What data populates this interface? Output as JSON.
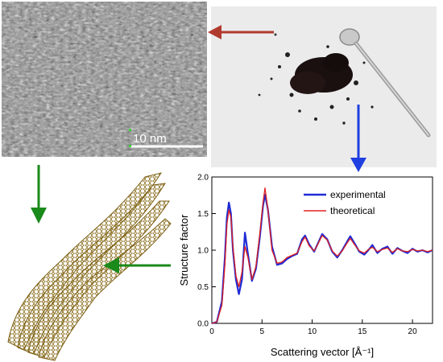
{
  "tem_panel": {
    "scale_bar_label": "10 nm"
  },
  "arrow_colors": {
    "red": "#b03a2e",
    "blue": "#1f3fe0",
    "green": "#1a8a1a"
  },
  "chart_data": {
    "type": "line",
    "xlabel": "Scattering vector [Å⁻¹]",
    "ylabel": "Structure factor",
    "xlim": [
      0,
      22
    ],
    "ylim": [
      0,
      2.0
    ],
    "xticks": [
      "0",
      "5",
      "10",
      "15",
      "20"
    ],
    "yticks": [
      "0.0",
      "0.5",
      "1.0",
      "1.5",
      "2.0"
    ],
    "grid": false,
    "legend_position": "top-right",
    "series": [
      {
        "name": "experimental",
        "color": "#1f2bd6",
        "x": [
          0,
          0.5,
          1.0,
          1.3,
          1.5,
          1.7,
          1.9,
          2.1,
          2.4,
          2.7,
          3.0,
          3.3,
          3.6,
          4.0,
          4.4,
          4.8,
          5.1,
          5.3,
          5.6,
          6.0,
          6.5,
          7.0,
          7.5,
          8.0,
          8.5,
          9.0,
          9.3,
          9.7,
          10.2,
          10.6,
          11.0,
          11.5,
          12.0,
          12.5,
          13.0,
          13.5,
          13.8,
          14.2,
          14.7,
          15.2,
          15.6,
          16.0,
          16.5,
          17.0,
          17.5,
          18.0,
          18.5,
          19.0,
          19.5,
          20.0,
          20.5,
          21.0,
          21.5,
          22.0
        ],
        "y": [
          0.0,
          0.02,
          0.3,
          0.9,
          1.45,
          1.65,
          1.5,
          1.0,
          0.6,
          0.4,
          0.6,
          1.24,
          0.95,
          0.58,
          0.75,
          1.2,
          1.6,
          1.76,
          1.55,
          1.05,
          0.8,
          0.82,
          0.88,
          0.92,
          0.95,
          1.15,
          1.2,
          1.08,
          0.98,
          1.1,
          1.22,
          1.15,
          0.98,
          0.9,
          1.0,
          1.12,
          1.19,
          1.1,
          0.98,
          0.94,
          1.0,
          1.07,
          0.96,
          1.02,
          1.05,
          0.95,
          1.03,
          0.99,
          0.96,
          1.02,
          0.98,
          1.0,
          0.97,
          1.0
        ]
      },
      {
        "name": "theoretical",
        "color": "#e02020",
        "x": [
          0,
          0.5,
          1.0,
          1.3,
          1.5,
          1.7,
          1.9,
          2.1,
          2.4,
          2.7,
          3.0,
          3.3,
          3.6,
          4.0,
          4.4,
          4.8,
          5.1,
          5.3,
          5.6,
          6.0,
          6.5,
          7.0,
          7.5,
          8.0,
          8.5,
          9.0,
          9.3,
          9.7,
          10.2,
          10.6,
          11.0,
          11.5,
          12.0,
          12.5,
          13.0,
          13.5,
          13.8,
          14.2,
          14.7,
          15.2,
          15.6,
          16.0,
          16.5,
          17.0,
          17.5,
          18.0,
          18.5,
          19.0,
          19.5,
          20.0,
          20.5,
          21.0,
          21.5,
          22.0
        ],
        "y": [
          0.0,
          0.02,
          0.25,
          0.8,
          1.35,
          1.55,
          1.45,
          1.05,
          0.65,
          0.5,
          0.7,
          1.05,
          0.9,
          0.6,
          0.78,
          1.25,
          1.65,
          1.85,
          1.55,
          1.0,
          0.82,
          0.84,
          0.9,
          0.93,
          0.96,
          1.12,
          1.18,
          1.06,
          0.99,
          1.09,
          1.2,
          1.14,
          0.99,
          0.92,
          0.99,
          1.1,
          1.16,
          1.08,
          0.99,
          0.96,
          1.01,
          1.04,
          0.98,
          1.01,
          1.03,
          0.97,
          1.02,
          0.99,
          0.98,
          1.01,
          0.99,
          1.0,
          0.98,
          1.0
        ]
      }
    ]
  }
}
